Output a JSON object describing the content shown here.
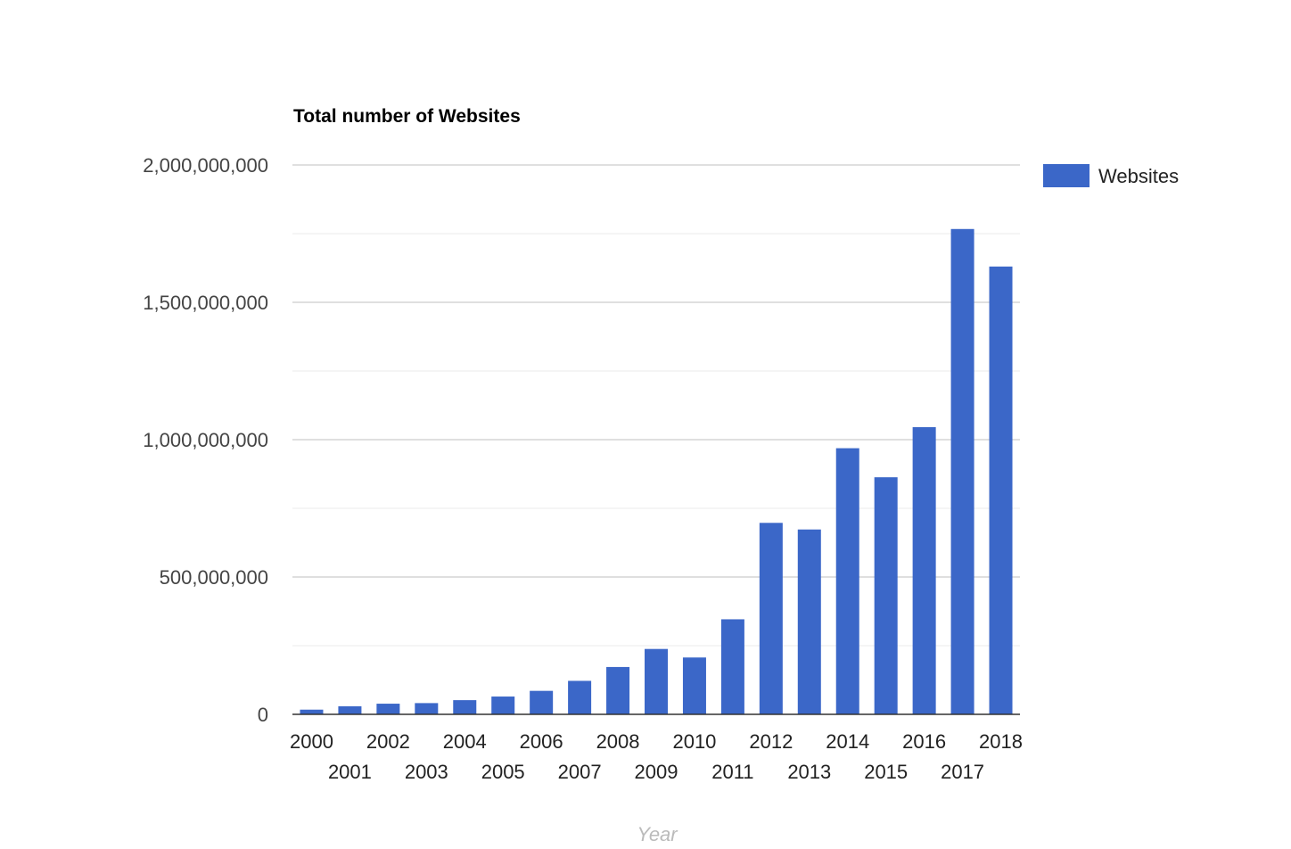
{
  "chart_data": {
    "type": "bar",
    "title": "Total number of Websites",
    "xlabel": "Year",
    "ylabel": "",
    "ylim": [
      0,
      2000000000
    ],
    "yticks": [
      0,
      500000000,
      1000000000,
      1500000000,
      2000000000
    ],
    "ytick_labels": [
      "0",
      "500,000,000",
      "1,000,000,000",
      "1,500,000,000",
      "2,000,000,000"
    ],
    "grid": true,
    "legend_position": "right",
    "categories": [
      "2000",
      "2001",
      "2002",
      "2003",
      "2004",
      "2005",
      "2006",
      "2007",
      "2008",
      "2009",
      "2010",
      "2011",
      "2012",
      "2013",
      "2014",
      "2015",
      "2016",
      "2017",
      "2018"
    ],
    "series": [
      {
        "name": "Websites",
        "color": "#3b67c8",
        "values": [
          17087182,
          29254370,
          38760373,
          40912332,
          51611646,
          64780617,
          85507314,
          121892559,
          172338726,
          238027855,
          206956723,
          346004403,
          697089489,
          672985183,
          968882453,
          863105652,
          1045534808,
          1766926408,
          1630322579
        ]
      }
    ]
  }
}
